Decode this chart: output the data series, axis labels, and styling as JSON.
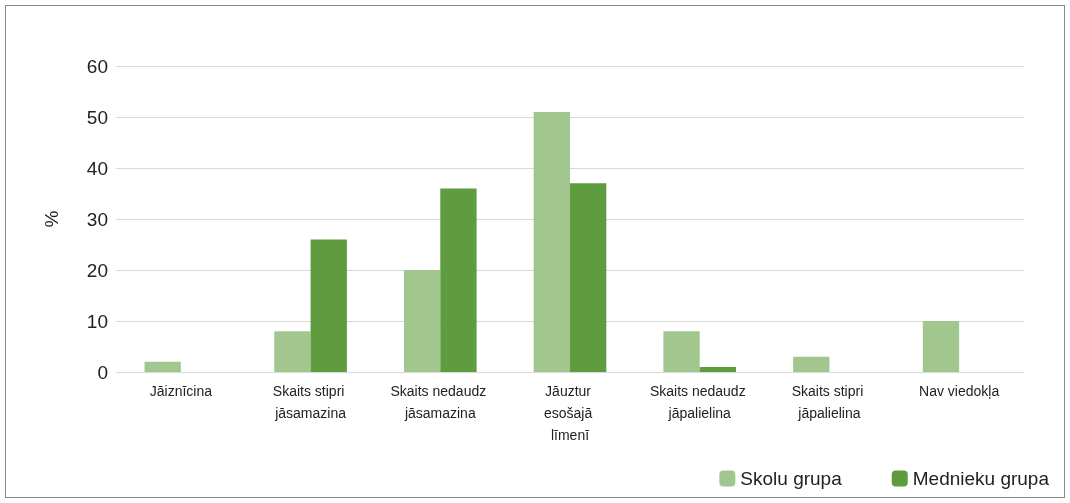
{
  "chart_data": {
    "type": "bar",
    "ylabel": "%",
    "categories": [
      "Jāiznīcina",
      "Skaits stipri jāsamazina",
      "Skaits nedaudz jāsamazina",
      "Jāuztur esošajā līmenī",
      "Skaits nedaudz jāpalielina",
      "Skaits stipri jāpalielina",
      "Nav viedokļa"
    ],
    "series": [
      {
        "name": "Skolu grupa",
        "color": "#a1c78f",
        "values": [
          2,
          8,
          20,
          51,
          8,
          3,
          10
        ]
      },
      {
        "name": "Mednieku grupa",
        "color": "#5f9c3f",
        "values": [
          0,
          26,
          36,
          37,
          1,
          0,
          0
        ]
      }
    ],
    "ylim": [
      0,
      60
    ],
    "yticks": [
      0,
      10,
      20,
      30,
      40,
      50,
      60
    ],
    "grid": "y",
    "legend": "bottom right"
  }
}
